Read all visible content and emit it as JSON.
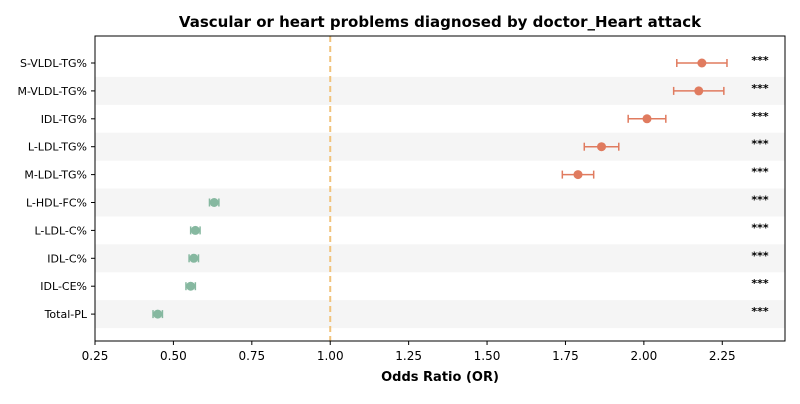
{
  "chart_data": {
    "type": "scatter",
    "title": "Vascular or heart problems diagnosed by doctor_Heart attack",
    "xlabel": "Odds Ratio (OR)",
    "ylabel": "",
    "xlim": [
      0.25,
      2.45
    ],
    "xticks": [
      0.25,
      0.5,
      0.75,
      1.0,
      1.25,
      1.5,
      1.75,
      2.0,
      2.25
    ],
    "xtick_labels": [
      "0.25",
      "0.50",
      "0.75",
      "1.00",
      "1.25",
      "1.50",
      "1.75",
      "2.00",
      "2.25"
    ],
    "reference_line": 1.0,
    "grid": false,
    "alternating_row_bands": true,
    "colors": {
      "increased": "#e07b5f",
      "decreased": "#86b8a0",
      "reference": "#f0c27b",
      "band": "#f5f5f5"
    },
    "rows": [
      {
        "label": "S-VLDL-TG%",
        "or": 2.185,
        "ci_low": 2.105,
        "ci_high": 2.265,
        "sig": "***"
      },
      {
        "label": "M-VLDL-TG%",
        "or": 2.175,
        "ci_low": 2.095,
        "ci_high": 2.255,
        "sig": "***"
      },
      {
        "label": "IDL-TG%",
        "or": 2.01,
        "ci_low": 1.95,
        "ci_high": 2.07,
        "sig": "***"
      },
      {
        "label": "L-LDL-TG%",
        "or": 1.865,
        "ci_low": 1.81,
        "ci_high": 1.92,
        "sig": "***"
      },
      {
        "label": "M-LDL-TG%",
        "or": 1.79,
        "ci_low": 1.74,
        "ci_high": 1.84,
        "sig": "***"
      },
      {
        "label": "L-HDL-FC%",
        "or": 0.63,
        "ci_low": 0.615,
        "ci_high": 0.645,
        "sig": "***"
      },
      {
        "label": "L-LDL-C%",
        "or": 0.57,
        "ci_low": 0.555,
        "ci_high": 0.585,
        "sig": "***"
      },
      {
        "label": "IDL-C%",
        "or": 0.565,
        "ci_low": 0.55,
        "ci_high": 0.58,
        "sig": "***"
      },
      {
        "label": "IDL-CE%",
        "or": 0.555,
        "ci_low": 0.54,
        "ci_high": 0.57,
        "sig": "***"
      },
      {
        "label": "Total-PL",
        "or": 0.45,
        "ci_low": 0.435,
        "ci_high": 0.465,
        "sig": "***"
      }
    ]
  }
}
